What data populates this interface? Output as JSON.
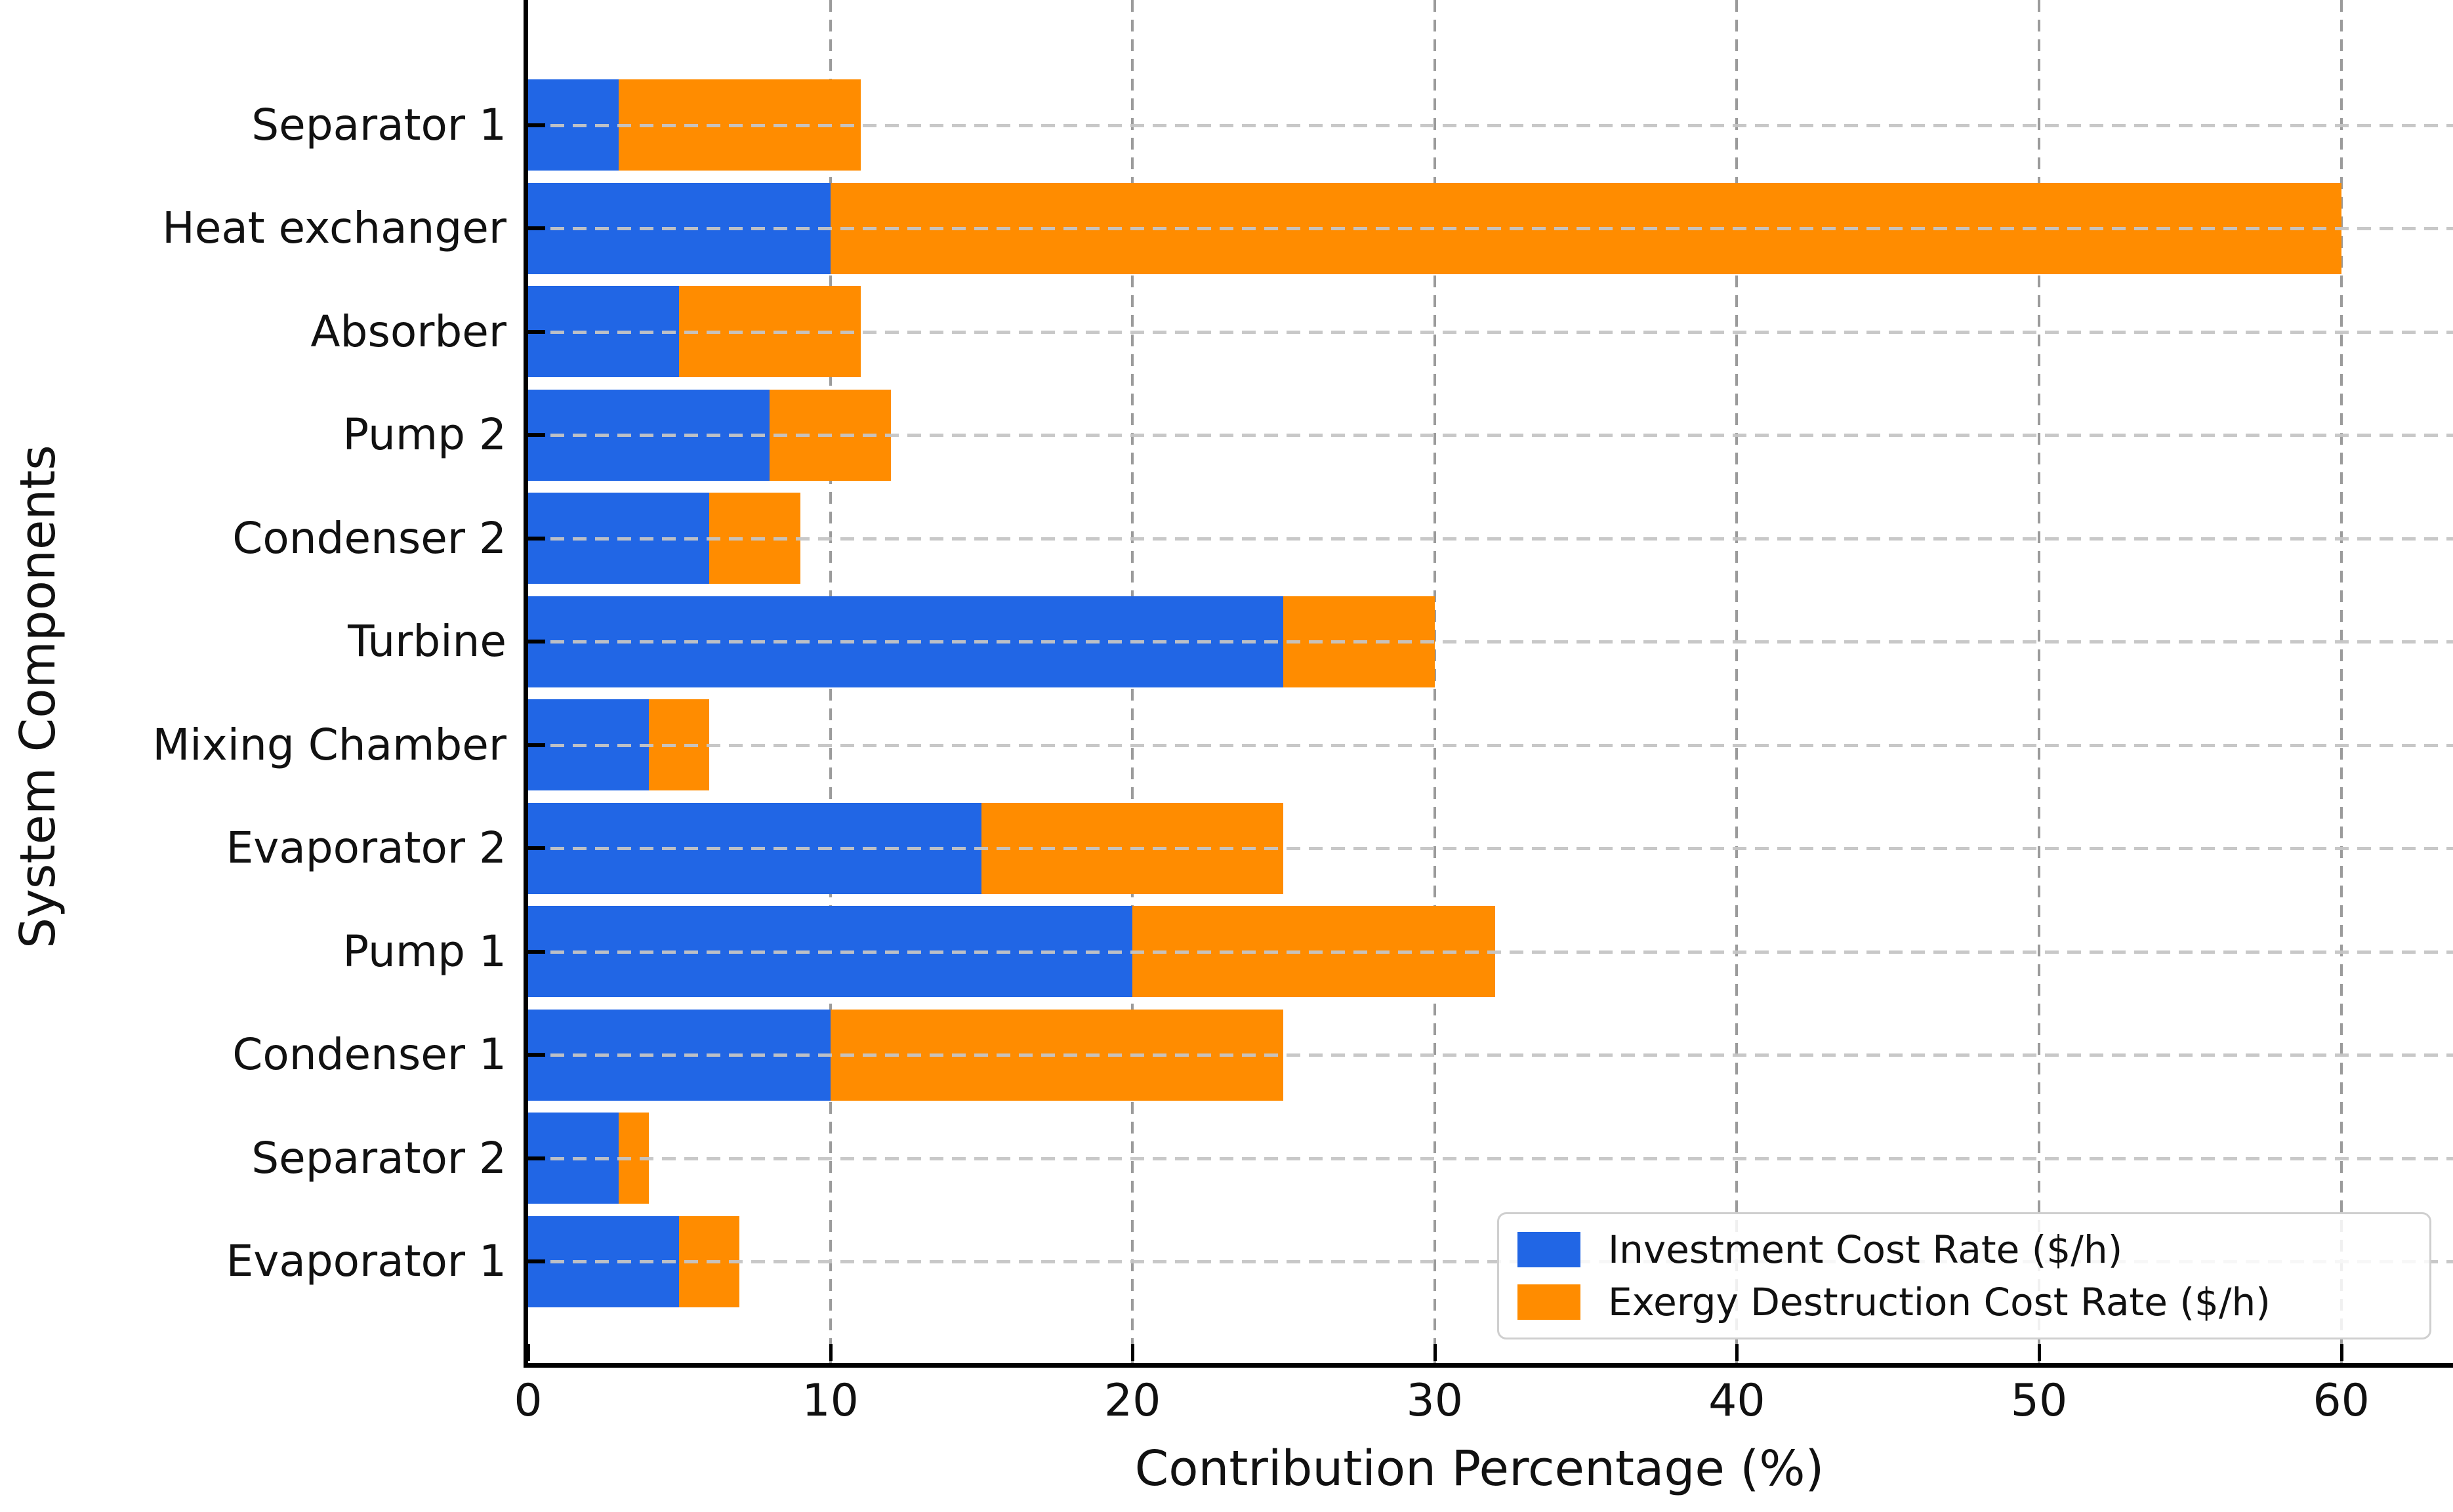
{
  "chart_data": {
    "type": "bar",
    "orientation": "horizontal",
    "stacked": true,
    "title": "",
    "xlabel": "Contribution Percentage (%)",
    "ylabel": "System Components",
    "categories": [
      "Separator 1",
      "Heat exchanger",
      "Absorber",
      "Pump 2",
      "Condenser 2",
      "Turbine",
      "Mixing Chamber",
      "Evaporator 2",
      "Pump 1",
      "Condenser 1",
      "Separator 2",
      "Evaporator 1"
    ],
    "series": [
      {
        "name": "Investment Cost Rate ($/h)",
        "color": "#2166E5",
        "values": [
          3,
          10,
          5,
          8,
          6,
          25,
          4,
          15,
          20,
          10,
          3,
          5
        ]
      },
      {
        "name": "Exergy Destruction Cost Rate ($/h)",
        "color": "#FF8C00",
        "values": [
          8,
          50,
          6,
          4,
          3,
          5,
          2,
          10,
          12,
          15,
          1,
          2
        ]
      }
    ],
    "stacked_totals": [
      11,
      60,
      11,
      12,
      9,
      30,
      6,
      25,
      32,
      25,
      4,
      7
    ],
    "x_ticks": [
      0,
      10,
      20,
      30,
      40,
      50,
      60
    ],
    "xlim": [
      0,
      63.7
    ],
    "grid": {
      "vertical": "dashed gray behind bars",
      "horizontal": "dashed light-gray over bars"
    },
    "legend": {
      "position": "lower right"
    },
    "colors": {
      "background": "#ffffff",
      "text": "#111111",
      "spine": "#000000",
      "legend_border": "#cfcfcf"
    }
  }
}
